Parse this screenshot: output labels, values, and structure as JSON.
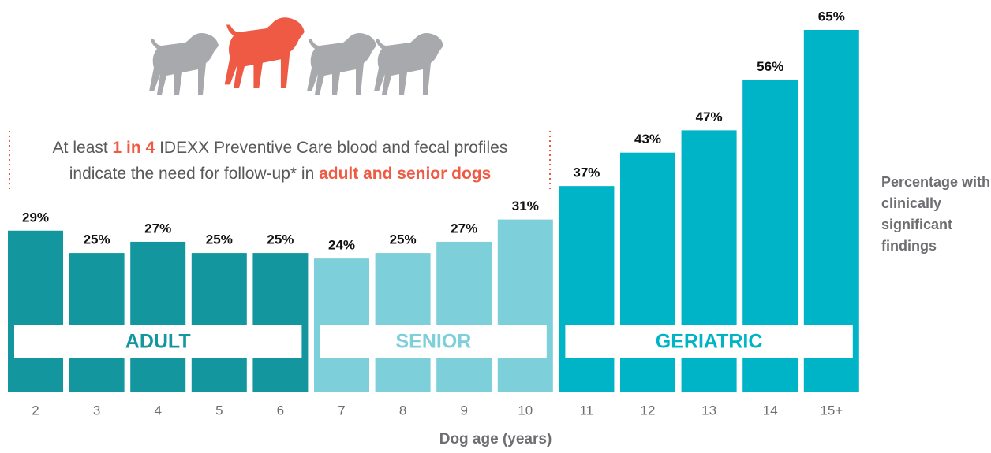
{
  "chart_data": {
    "type": "bar",
    "categories": [
      "2",
      "3",
      "4",
      "5",
      "6",
      "7",
      "8",
      "9",
      "10",
      "11",
      "12",
      "13",
      "14",
      "15+"
    ],
    "series": [
      {
        "name": "ADULT",
        "color": "#14969f",
        "values": [
          29,
          25,
          27,
          25,
          25,
          null,
          null,
          null,
          null,
          null,
          null,
          null,
          null,
          null
        ],
        "value_labels": [
          "29%",
          "25%",
          "27%",
          "25%",
          "25%",
          null,
          null,
          null,
          null,
          null,
          null,
          null,
          null,
          null
        ]
      },
      {
        "name": "SENIOR",
        "color": "#7dcfda",
        "values": [
          null,
          null,
          null,
          null,
          null,
          24,
          25,
          27,
          31,
          null,
          null,
          null,
          null,
          null
        ],
        "value_labels": [
          null,
          null,
          null,
          null,
          null,
          "24%",
          "25%",
          "27%",
          "31%",
          null,
          null,
          null,
          null,
          null
        ]
      },
      {
        "name": "GERIATRIC",
        "color": "#00b4c7",
        "values": [
          null,
          null,
          null,
          null,
          null,
          null,
          null,
          null,
          null,
          37,
          43,
          47,
          56,
          65
        ],
        "value_labels": [
          null,
          null,
          null,
          null,
          null,
          null,
          null,
          null,
          null,
          "37%",
          "43%",
          "47%",
          "56%",
          "65%"
        ]
      }
    ],
    "x_label": "Dog age (years)",
    "y_label": "Percentage with clinically significant findings",
    "annotation_lines": [
      [
        "At least ",
        "1 in 4",
        " IDEXX Preventive Care blood and fecal profiles"
      ],
      [
        "indicate the need for follow-up* in ",
        "adult and senior dogs"
      ]
    ],
    "highlight_color": "#ef5a45"
  }
}
